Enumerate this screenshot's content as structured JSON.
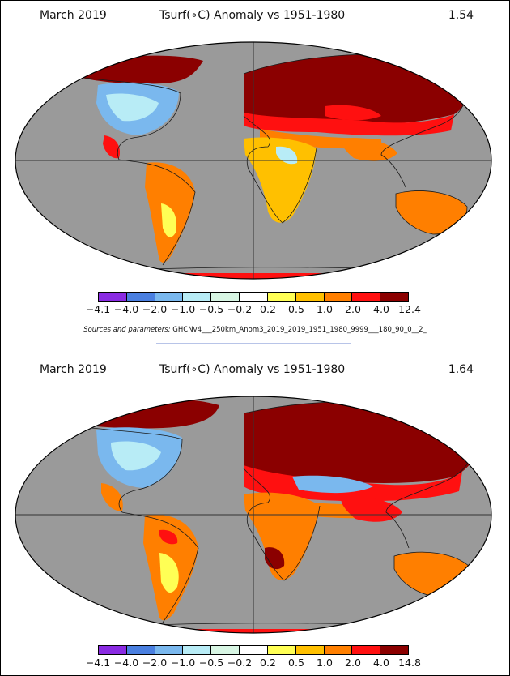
{
  "panels": [
    {
      "date": "March 2019",
      "title": "Tsurf(∘C) Anomaly vs 1951-1980",
      "global_mean": "1.54",
      "legend": {
        "ticks": [
          "−4.1",
          "−4.0",
          "−2.0",
          "−1.0",
          "−0.5",
          "−0.2",
          "0.2",
          "0.5",
          "1.0",
          "2.0",
          "4.0",
          "12.4"
        ]
      }
    },
    {
      "date": "March 2019",
      "title": "Tsurf(∘C) Anomaly vs 1951-1980",
      "global_mean": "1.64",
      "legend": {
        "ticks": [
          "−4.1",
          "−4.0",
          "−2.0",
          "−1.0",
          "−0.5",
          "−0.2",
          "0.2",
          "0.5",
          "1.0",
          "2.0",
          "4.0",
          "14.8"
        ]
      }
    }
  ],
  "sources": {
    "label": "Sources and parameters:",
    "params": "GHCNv4___250km_Anom3_2019_2019_1951_1980_9999___180_90_0__2_"
  },
  "colors": {
    "bins": [
      "#8a2be2",
      "#4a7fe0",
      "#7ab8ee",
      "#b8ecf6",
      "#d8f6e4",
      "#ffffff",
      "#ffff55",
      "#ffc000",
      "#ff7f00",
      "#ff1010",
      "#8b0000"
    ],
    "missing": "#9a9a9a",
    "land_outline": "#1a1a1a"
  }
}
